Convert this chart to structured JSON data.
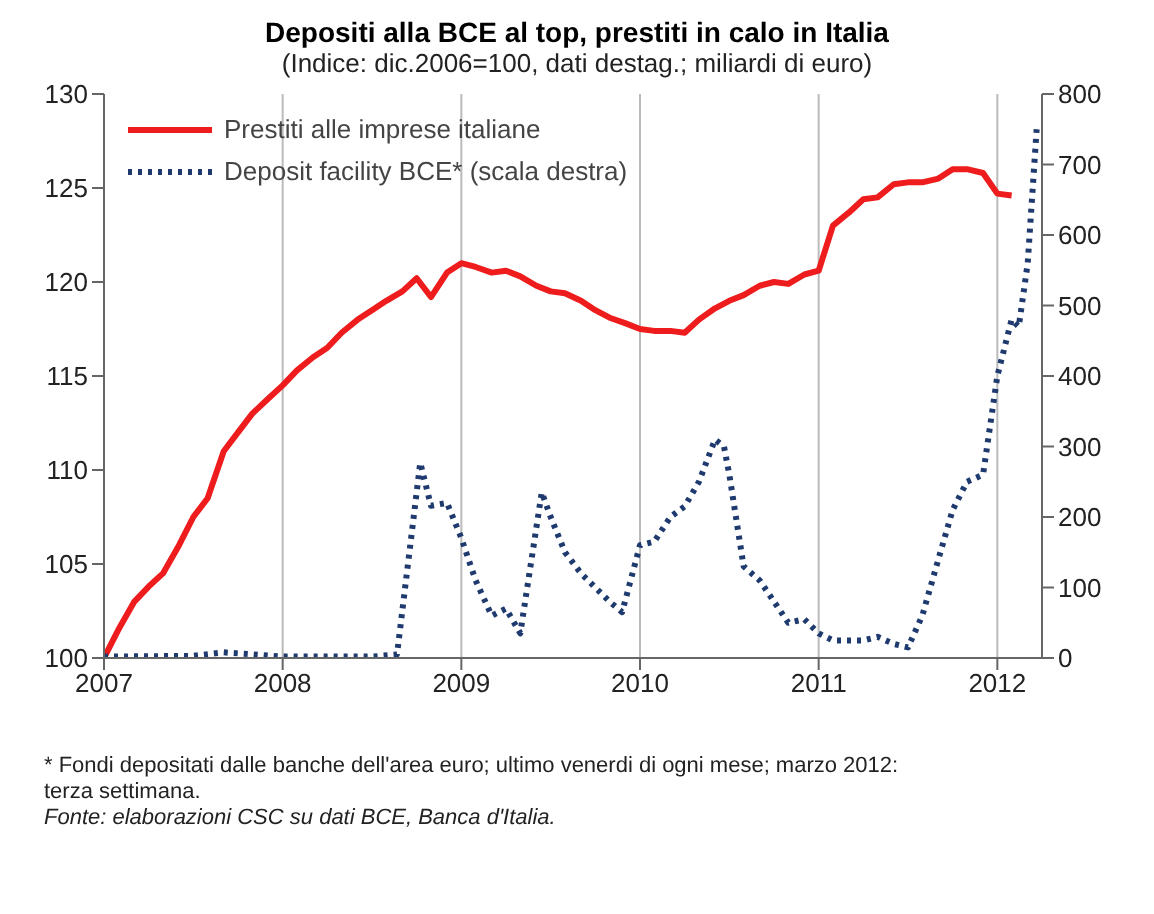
{
  "chart_data": {
    "type": "line",
    "title": "Depositi alla BCE al top, prestiti in calo in Italia",
    "subtitle": "(Indice: dic.2006=100, dati destag.; miliardi di euro)",
    "xlim": [
      2007,
      2012.25
    ],
    "xticks": [
      2007,
      2008,
      2009,
      2010,
      2011,
      2012
    ],
    "ylim": [
      100,
      130
    ],
    "yticks": [
      100,
      105,
      110,
      115,
      120,
      125,
      130
    ],
    "y2lim": [
      0,
      800
    ],
    "y2ticks": [
      0,
      100,
      200,
      300,
      400,
      500,
      600,
      700,
      800
    ],
    "grid": "x",
    "legend": "top left",
    "marker": "none",
    "series": [
      {
        "name": "Prestiti alle imprese italiane",
        "color": "#ee1c1c",
        "line_style": "solid",
        "x": [
          2007,
          2007.08,
          2007.17,
          2007.25,
          2007.33,
          2007.42,
          2007.5,
          2007.58,
          2007.67,
          2007.75,
          2007.83,
          2007.92,
          2008,
          2008.08,
          2008.17,
          2008.25,
          2008.33,
          2008.42,
          2008.5,
          2008.58,
          2008.67,
          2008.75,
          2008.83,
          2008.92,
          2009,
          2009.08,
          2009.17,
          2009.25,
          2009.33,
          2009.42,
          2009.5,
          2009.58,
          2009.67,
          2009.75,
          2009.83,
          2009.92,
          2010,
          2010.08,
          2010.17,
          2010.25,
          2010.33,
          2010.42,
          2010.5,
          2010.58,
          2010.67,
          2010.75,
          2010.83,
          2010.92,
          2011,
          2011.08,
          2011.17,
          2011.25,
          2011.33,
          2011.42,
          2011.5,
          2011.58,
          2011.67,
          2011.75,
          2011.83,
          2011.92,
          2012,
          2012.08
        ],
        "values": [
          100,
          101.5,
          103,
          103.8,
          104.5,
          106,
          107.5,
          108.5,
          111,
          112,
          113,
          113.8,
          114.5,
          115.3,
          116,
          116.5,
          117.3,
          118,
          118.5,
          119,
          119.5,
          120.2,
          119.2,
          120.5,
          121,
          120.8,
          120.5,
          120.6,
          120.3,
          119.8,
          119.5,
          119.4,
          119,
          118.5,
          118.1,
          117.8,
          117.5,
          117.4,
          117.4,
          117.3,
          118,
          118.6,
          119,
          119.3,
          119.8,
          120,
          119.9,
          120.4,
          120.6,
          123,
          123.7,
          124.4,
          124.5,
          125.2,
          125.3,
          125.3,
          125.5,
          126,
          126,
          125.8,
          124.7,
          124.6
        ]
      },
      {
        "name": "Deposit facility BCE* (scala destra)",
        "color": "#1f3a6e",
        "line_style": "dotted",
        "axis": "y2",
        "x": [
          2007,
          2007.5,
          2007.67,
          2008,
          2008.5,
          2008.64,
          2008.77,
          2008.83,
          2008.92,
          2009,
          2009.08,
          2009.17,
          2009.25,
          2009.33,
          2009.45,
          2009.5,
          2009.58,
          2009.67,
          2009.75,
          2009.83,
          2009.9,
          2010,
          2010.08,
          2010.17,
          2010.25,
          2010.33,
          2010.42,
          2010.47,
          2010.5,
          2010.58,
          2010.67,
          2010.75,
          2010.83,
          2010.92,
          2011,
          2011.08,
          2011.17,
          2011.25,
          2011.33,
          2011.42,
          2011.5,
          2011.58,
          2011.67,
          2011.75,
          2011.83,
          2011.92,
          2012,
          2012.08,
          2012.12,
          2012.17,
          2012.22
        ],
        "values": [
          2,
          3,
          8,
          2,
          2,
          5,
          277,
          216,
          220,
          170,
          110,
          60,
          70,
          35,
          235,
          200,
          150,
          120,
          100,
          80,
          65,
          160,
          165,
          200,
          215,
          250,
          310,
          300,
          260,
          130,
          110,
          80,
          50,
          55,
          35,
          25,
          25,
          25,
          30,
          20,
          15,
          60,
          140,
          210,
          250,
          260,
          400,
          480,
          470,
          560,
          750
        ]
      }
    ],
    "annotations": [
      "* Fondi depositati dalle banche dell'area euro; ultimo venerdi di ogni mese; marzo 2012: terza settimana.",
      "Fonte: elaborazioni CSC su dati BCE, Banca d'Italia."
    ]
  }
}
